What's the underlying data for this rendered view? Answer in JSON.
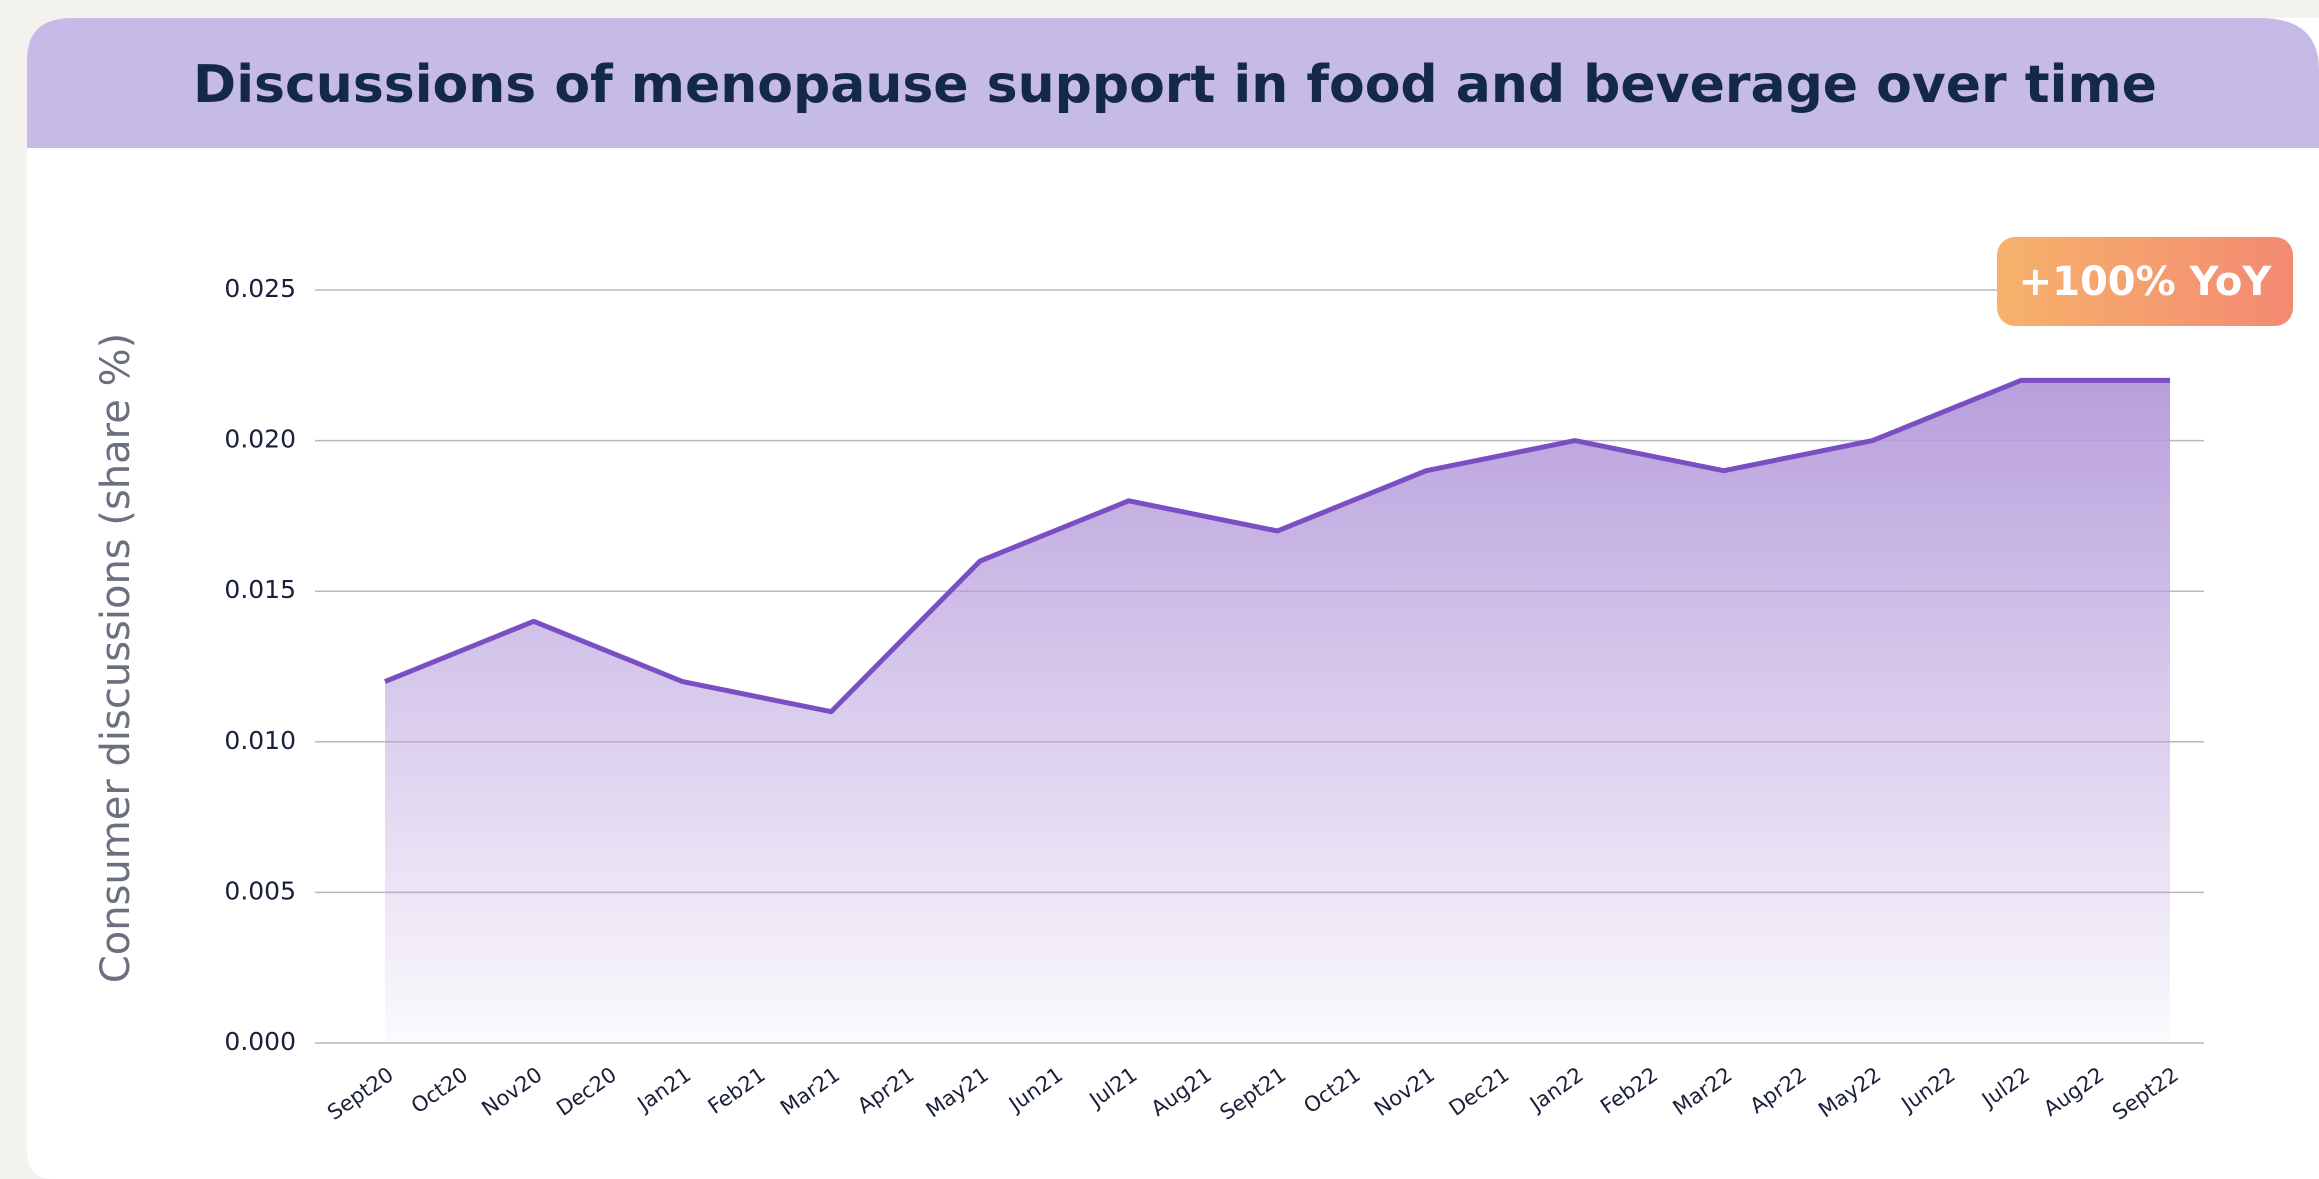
{
  "chart_data": {
    "type": "area",
    "title": "Discussions of menopause support in food and beverage over time",
    "ylabel": "Consumer discussions (share %)",
    "annotation": "+100% YoY",
    "categories": [
      "Sept20",
      "Oct20",
      "Nov20",
      "Dec20",
      "Jan21",
      "Feb21",
      "Mar21",
      "Apr21",
      "May21",
      "Jun21",
      "Jul21",
      "Aug21",
      "Sept21",
      "Oct21",
      "Nov21",
      "Dec21",
      "Jan22",
      "Feb22",
      "Mar22",
      "Apr22",
      "May22",
      "Jun22",
      "Jul22",
      "Aug22",
      "Sept22"
    ],
    "values": [
      0.012,
      0.013,
      0.014,
      0.013,
      0.012,
      0.0115,
      0.011,
      0.0135,
      0.016,
      0.017,
      0.018,
      0.0175,
      0.017,
      0.018,
      0.019,
      0.0195,
      0.02,
      0.0195,
      0.019,
      0.0195,
      0.02,
      0.021,
      0.022,
      0.022,
      0.022
    ],
    "color": "#7b4fc4",
    "ylim": [
      0,
      0.025
    ],
    "yticks": [
      {
        "value": 0,
        "label": "0.000"
      },
      {
        "value": 0.005,
        "label": "0.005"
      },
      {
        "value": 0.01,
        "label": "0.010"
      },
      {
        "value": 0.015,
        "label": "0.015"
      },
      {
        "value": 0.02,
        "label": "0.020"
      },
      {
        "value": 0.025,
        "label": "0.025"
      }
    ],
    "grid": true
  }
}
